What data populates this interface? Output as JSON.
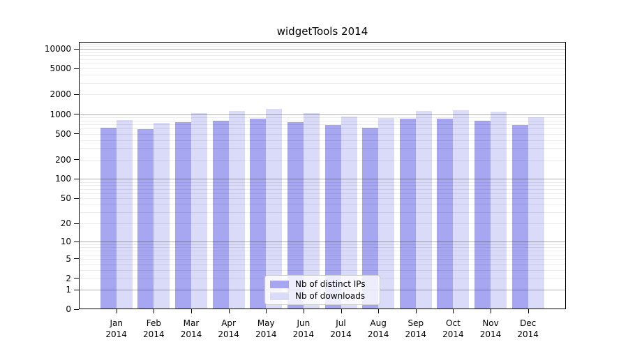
{
  "title": "widgetTools 2014",
  "colors": {
    "distinct_ips": "#a6a6f1",
    "downloads": "#dadaf9",
    "axis": "#000000",
    "grid_minor": "rgba(0,0,0,0.075)",
    "grid_major": "rgba(0,0,0,0.32)"
  },
  "legend": {
    "items": [
      {
        "label": "Nb of distinct IPs",
        "color_key": "distinct_ips"
      },
      {
        "label": "Nb of downloads",
        "color_key": "downloads"
      }
    ]
  },
  "chart_data": {
    "type": "bar",
    "title": "widgetTools 2014",
    "yscale": "log10(value+1)",
    "ylim": [
      0,
      12800
    ],
    "grid": true,
    "legend_position": "inside-bottom-center",
    "categories": [
      "Jan 2014",
      "Feb 2014",
      "Mar 2014",
      "Apr 2014",
      "May 2014",
      "Jun 2014",
      "Jul 2014",
      "Aug 2014",
      "Sep 2014",
      "Oct 2014",
      "Nov 2014",
      "Dec 2014"
    ],
    "series": [
      {
        "name": "Nb of distinct IPs",
        "values": [
          620,
          590,
          750,
          800,
          845,
          745,
          690,
          625,
          860,
          860,
          790,
          680
        ]
      },
      {
        "name": "Nb of downloads",
        "values": [
          810,
          730,
          1050,
          1120,
          1195,
          1040,
          910,
          885,
          1120,
          1160,
          1090,
          895
        ]
      }
    ],
    "yticks": [
      0,
      1,
      2,
      5,
      10,
      20,
      50,
      100,
      200,
      500,
      1000,
      2000,
      5000,
      10000
    ]
  }
}
